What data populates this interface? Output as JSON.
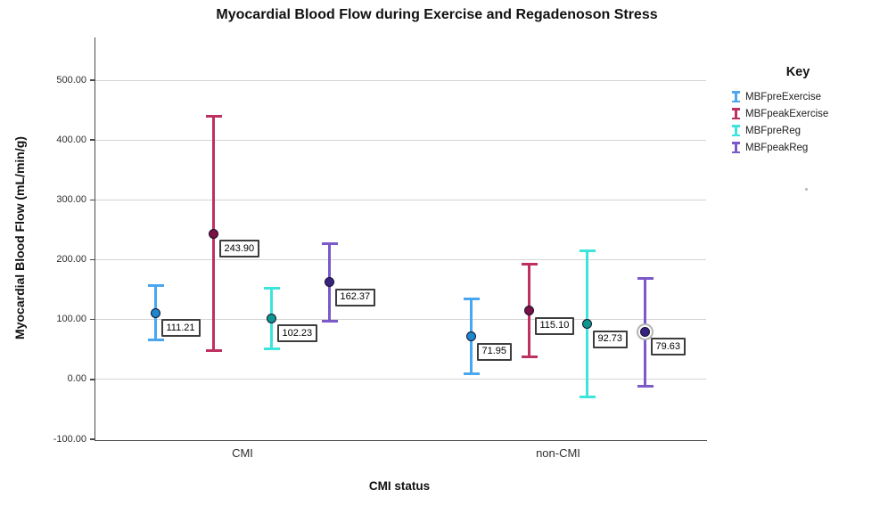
{
  "title": "Myocardial Blood Flow during Exercise and Regadenoson Stress",
  "chart_data": {
    "type": "errorbar",
    "title": "Myocardial Blood Flow during Exercise and Regadenoson Stress",
    "xlabel": "CMI status",
    "ylabel": "Myocardial Blood Flow (mL/min/g)",
    "ylim": [
      -100,
      500
    ],
    "grid": true,
    "axis_color": "#4a4a4a",
    "grid_color": "#d4d4d4",
    "yticks": [
      {
        "value": 500,
        "label": "500.00"
      },
      {
        "value": 400,
        "label": "400.00"
      },
      {
        "value": 300,
        "label": "300.00"
      },
      {
        "value": 200,
        "label": "200.00"
      },
      {
        "value": 100,
        "label": "100.00"
      },
      {
        "value": 0,
        "label": "0.00"
      },
      {
        "value": -100,
        "label": "-100.00"
      }
    ],
    "categories": [
      "CMI",
      "non-CMI"
    ],
    "legend": {
      "title": "Key",
      "position": "right",
      "entries": [
        "MBFpreExercise",
        "MBFpeakExercise",
        "MBFpreReg",
        "MBFpeakReg"
      ]
    },
    "series": [
      {
        "name": "MBFpreExercise",
        "line_color": "#4BA6F0",
        "marker_color": "#1D87CF",
        "points": [
          {
            "category": "CMI",
            "mean": 111.21,
            "label": "111.21",
            "ci_low": 65,
            "ci_high": 158
          },
          {
            "category": "non-CMI",
            "mean": 71.95,
            "label": "71.95",
            "ci_low": 8,
            "ci_high": 135
          }
        ]
      },
      {
        "name": "MBFpeakExercise",
        "line_color": "#BE3061",
        "marker_color": "#7D1144",
        "points": [
          {
            "category": "CMI",
            "mean": 243.9,
            "label": "243.90",
            "ci_low": 48,
            "ci_high": 441
          },
          {
            "category": "non-CMI",
            "mean": 115.1,
            "label": "115.10",
            "ci_low": 37,
            "ci_high": 193
          }
        ]
      },
      {
        "name": "MBFpreReg",
        "line_color": "#3CE4DC",
        "marker_color": "#11968F",
        "points": [
          {
            "category": "CMI",
            "mean": 102.23,
            "label": "102.23",
            "ci_low": 50,
            "ci_high": 153
          },
          {
            "category": "non-CMI",
            "mean": 92.73,
            "label": "92.73",
            "ci_low": -30,
            "ci_high": 216
          }
        ]
      },
      {
        "name": "MBFpeakReg",
        "line_color": "#7B59C8",
        "marker_color": "#392380",
        "points": [
          {
            "category": "CMI",
            "mean": 162.37,
            "label": "162.37",
            "ci_low": 97,
            "ci_high": 228
          },
          {
            "category": "non-CMI",
            "mean": 79.63,
            "label": "79.63",
            "ci_low": -12,
            "ci_high": 170,
            "highlight_ring": true
          }
        ]
      }
    ]
  }
}
